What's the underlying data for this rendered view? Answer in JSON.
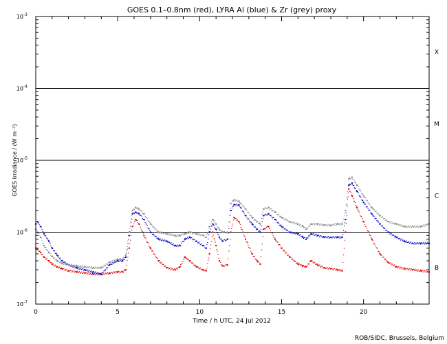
{
  "chart_data": {
    "type": "scatter",
    "title": "GOES 0.1–0.8nm (red), LYRA Al (blue) & Zr (grey) proxy",
    "xlabel": "Time / h UTC, 24 Jul 2012",
    "ylabel": "GOES Irradiance / (W m⁻²)",
    "credit": "ROB/SIDC, Brussels, Belgium",
    "x_range": [
      0,
      24
    ],
    "y_range": [
      1e-07,
      0.001
    ],
    "y_scale": "log",
    "x_ticks": [
      0,
      5,
      10,
      15,
      20
    ],
    "x_tick_labels": [
      "0",
      "5",
      "10",
      "15",
      "20"
    ],
    "y_tick_labels": [
      {
        "value": 0.001,
        "base": "10",
        "exp": "-3"
      },
      {
        "value": 0.0001,
        "base": "10",
        "exp": "-4"
      },
      {
        "value": 1e-05,
        "base": "10",
        "exp": "-5"
      },
      {
        "value": 1e-06,
        "base": "10",
        "exp": "-6"
      },
      {
        "value": 1e-07,
        "base": "10",
        "exp": "-7"
      }
    ],
    "flare_levels": [
      0.0001,
      1e-05,
      1e-06
    ],
    "flare_classes": [
      {
        "label": "X",
        "value": 0.00032
      },
      {
        "label": "M",
        "value": 3.2e-05
      },
      {
        "label": "C",
        "value": 3.2e-06
      },
      {
        "label": "B",
        "value": 3.2e-07
      }
    ],
    "series": [
      {
        "name": "red",
        "color": "#dd0000",
        "x": [
          0,
          0.1,
          0.3,
          0.5,
          0.8,
          1,
          1.3,
          1.6,
          2,
          2.5,
          3,
          3.5,
          4,
          4.5,
          5,
          5.3,
          5.5,
          5.7,
          5.9,
          6.1,
          6.3,
          6.6,
          7,
          7.5,
          8,
          8.5,
          8.8,
          9.1,
          9.4,
          9.8,
          10.2,
          10.4,
          10.6,
          10.8,
          11,
          11.2,
          11.4,
          11.7,
          11.9,
          12.1,
          12.4,
          12.8,
          13.2,
          13.5,
          13.7,
          13.9,
          14.2,
          14.6,
          15,
          15.5,
          16,
          16.3,
          16.5,
          16.8,
          17.2,
          17.6,
          18,
          18.4,
          18.7,
          18.9,
          19.1,
          19.3,
          19.6,
          20,
          20.5,
          21,
          21.5,
          22,
          22.5,
          23,
          23.5,
          24
        ],
        "values": [
          6e-07,
          5.8e-07,
          5.2e-07,
          4.5e-07,
          4e-07,
          3.6e-07,
          3.3e-07,
          3.1e-07,
          2.9e-07,
          2.8e-07,
          2.7e-07,
          2.6e-07,
          2.6e-07,
          2.7e-07,
          2.8e-07,
          2.8e-07,
          3e-07,
          6e-07,
          1.2e-06,
          1.5e-06,
          1.3e-06,
          9e-07,
          6e-07,
          4e-07,
          3.2e-07,
          3e-07,
          3.3e-07,
          4.5e-07,
          4e-07,
          3.3e-07,
          3e-07,
          2.9e-07,
          5e-07,
          1e-06,
          6.5e-07,
          4e-07,
          3.4e-07,
          3.5e-07,
          1e-06,
          1.6e-06,
          1.4e-06,
          8e-07,
          5e-07,
          4e-07,
          3.6e-07,
          1.1e-06,
          1.2e-06,
          8e-07,
          6e-07,
          4.5e-07,
          3.6e-07,
          3.4e-07,
          3.3e-07,
          4e-07,
          3.5e-07,
          3.2e-07,
          3.1e-07,
          3e-07,
          2.9e-07,
          1e-06,
          4e-06,
          3.2e-06,
          2.2e-06,
          1.4e-06,
          8e-07,
          5e-07,
          3.8e-07,
          3.3e-07,
          3.1e-07,
          3e-07,
          2.9e-07,
          2.8e-07
        ]
      },
      {
        "name": "blue",
        "color": "#0000cc",
        "x": [
          0,
          0.1,
          0.3,
          0.5,
          0.8,
          1,
          1.3,
          1.6,
          2,
          2.5,
          3,
          3.5,
          4,
          4.5,
          5,
          5.3,
          5.5,
          5.7,
          5.9,
          6.1,
          6.3,
          6.6,
          7,
          7.5,
          8,
          8.5,
          8.8,
          9.1,
          9.4,
          9.8,
          10.2,
          10.4,
          10.6,
          10.8,
          11,
          11.2,
          11.4,
          11.7,
          11.9,
          12.1,
          12.4,
          12.8,
          13.2,
          13.5,
          13.7,
          13.9,
          14.2,
          14.6,
          15,
          15.5,
          16,
          16.3,
          16.5,
          16.8,
          17.2,
          17.6,
          18,
          18.4,
          18.7,
          18.9,
          19.1,
          19.3,
          19.6,
          20,
          20.5,
          21,
          21.5,
          22,
          22.5,
          23,
          23.5,
          24
        ],
        "values": [
          1.3e-06,
          1.4e-06,
          1.2e-06,
          9.5e-07,
          7.5e-07,
          6e-07,
          4.8e-07,
          4e-07,
          3.5e-07,
          3.2e-07,
          3e-07,
          2.8e-07,
          2.6e-07,
          3.5e-07,
          4e-07,
          4e-07,
          4.5e-07,
          9e-07,
          1.8e-06,
          1.9e-06,
          1.8e-06,
          1.5e-06,
          1e-06,
          8e-07,
          7.5e-07,
          6.5e-07,
          6.5e-07,
          8e-07,
          8.5e-07,
          7.5e-07,
          6.5e-07,
          6e-07,
          1e-06,
          1.3e-06,
          1.1e-06,
          8.5e-07,
          7.5e-07,
          8e-07,
          2e-06,
          2.4e-06,
          2.4e-06,
          1.7e-06,
          1.3e-06,
          1.1e-06,
          1e-06,
          1.7e-06,
          1.8e-06,
          1.5e-06,
          1.2e-06,
          1e-06,
          9.5e-07,
          8.5e-07,
          8e-07,
          9.5e-07,
          9e-07,
          8.5e-07,
          8.5e-07,
          8.5e-07,
          8.5e-07,
          1.5e-06,
          4.5e-06,
          4.8e-06,
          3.7e-06,
          2.6e-06,
          1.8e-06,
          1.3e-06,
          1e-06,
          8.5e-07,
          7.5e-07,
          7e-07,
          7e-07,
          7e-07
        ]
      },
      {
        "name": "grey",
        "color": "#888888",
        "x": [
          0,
          0.1,
          0.3,
          0.5,
          0.8,
          1,
          1.3,
          1.6,
          2,
          2.5,
          3,
          3.5,
          4,
          4.5,
          5,
          5.3,
          5.5,
          5.7,
          5.9,
          6.1,
          6.3,
          6.6,
          7,
          7.5,
          8,
          8.5,
          8.8,
          9.1,
          9.4,
          9.8,
          10.2,
          10.4,
          10.6,
          10.8,
          11,
          11.2,
          11.4,
          11.7,
          11.9,
          12.1,
          12.4,
          12.8,
          13.2,
          13.5,
          13.7,
          13.9,
          14.2,
          14.6,
          15,
          15.5,
          16,
          16.3,
          16.5,
          16.8,
          17.2,
          17.6,
          18,
          18.4,
          18.7,
          18.9,
          19.1,
          19.3,
          19.6,
          20,
          20.5,
          21,
          21.5,
          22,
          22.5,
          23,
          23.5,
          24
        ],
        "values": [
          1.1e-06,
          1e-06,
          8.5e-07,
          6.5e-07,
          5.2e-07,
          4.6e-07,
          4e-07,
          3.7e-07,
          3.5e-07,
          3.4e-07,
          3.3e-07,
          3.2e-07,
          3.2e-07,
          3.8e-07,
          4.2e-07,
          4.2e-07,
          4.8e-07,
          1e-06,
          2e-06,
          2.2e-06,
          2.1e-06,
          1.8e-06,
          1.3e-06,
          1e-06,
          9.5e-07,
          9e-07,
          9e-07,
          9.5e-07,
          1e-06,
          9.5e-07,
          9e-07,
          8.5e-07,
          1.2e-06,
          1.5e-06,
          1.3e-06,
          1.1e-06,
          1e-06,
          1e-06,
          2.5e-06,
          2.8e-06,
          2.7e-06,
          2.1e-06,
          1.6e-06,
          1.4e-06,
          1.3e-06,
          2.1e-06,
          2.2e-06,
          1.9e-06,
          1.6e-06,
          1.4e-06,
          1.3e-06,
          1.2e-06,
          1.1e-06,
          1.3e-06,
          1.3e-06,
          1.25e-06,
          1.25e-06,
          1.3e-06,
          1.3e-06,
          2e-06,
          5.5e-06,
          5.8e-06,
          4.5e-06,
          3.2e-06,
          2.2e-06,
          1.7e-06,
          1.4e-06,
          1.3e-06,
          1.2e-06,
          1.2e-06,
          1.2e-06,
          1.3e-06
        ]
      }
    ]
  }
}
